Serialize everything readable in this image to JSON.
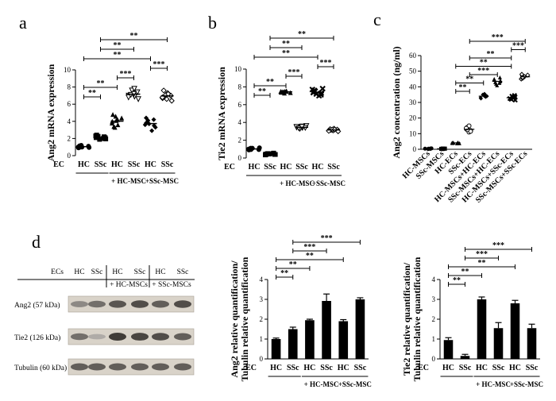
{
  "panels": {
    "a": "a",
    "b": "b",
    "c": "c",
    "d": "d"
  },
  "chart_data": [
    {
      "id": "a",
      "type": "scatter",
      "ylabel": "Ang2 mRNA expression",
      "ylim": [
        0,
        10
      ],
      "yticks": [
        "0",
        "2",
        "4",
        "6",
        "8",
        "10"
      ],
      "row_label": "EC",
      "categories": [
        "HC",
        "SSc",
        "HC",
        "SSc",
        "HC",
        "SSc"
      ],
      "groups": [
        "+ HC-MSC",
        "+SSc-MSC"
      ],
      "markers": [
        "circle",
        "square",
        "triangle-up",
        "triangle-down",
        "diamond",
        "diamond-open"
      ],
      "points": [
        [
          1.0,
          1.1,
          0.9,
          1.2,
          1.0,
          1.05,
          0.95,
          1.15,
          1.0,
          1.1
        ],
        [
          2.1,
          2.0,
          2.3,
          1.9,
          2.2,
          2.4,
          2.0,
          2.1,
          1.95,
          2.25
        ],
        [
          4.0,
          3.6,
          4.6,
          3.3,
          4.2,
          4.8,
          3.8,
          4.4,
          3.4,
          4.1
        ],
        [
          6.9,
          7.3,
          7.6,
          6.6,
          7.0,
          7.4,
          6.8,
          7.8,
          7.1,
          7.2
        ],
        [
          3.7,
          4.1,
          3.3,
          2.9,
          4.4,
          3.9,
          3.5,
          4.2,
          3.6,
          3.8
        ],
        [
          6.6,
          7.0,
          7.3,
          6.4,
          6.9,
          7.6,
          6.7,
          7.1,
          6.8,
          7.2
        ]
      ],
      "comparisons": [
        {
          "from": 0,
          "to": 1,
          "label": "**"
        },
        {
          "from": 0,
          "to": 2,
          "label": "**"
        },
        {
          "from": 2,
          "to": 3,
          "label": "***"
        },
        {
          "from": 4,
          "to": 5,
          "label": "***"
        },
        {
          "from": 0,
          "to": 4,
          "label": "**"
        },
        {
          "from": 1,
          "to": 3,
          "label": "**"
        },
        {
          "from": 1,
          "to": 5,
          "label": "**"
        }
      ]
    },
    {
      "id": "b",
      "type": "scatter",
      "ylabel": "Tie2 mRNA expression",
      "ylim": [
        0,
        10
      ],
      "yticks": [
        "0",
        "2",
        "4",
        "6",
        "8",
        "10"
      ],
      "row_label": "EC",
      "categories": [
        "HC",
        "SSc",
        "HC",
        "SSc",
        "HC",
        "SSc"
      ],
      "groups": [
        "+ HC-MSC",
        "+SSc-MSC"
      ],
      "markers": [
        "circle",
        "square",
        "triangle-up",
        "triangle-down",
        "cross",
        "diamond-open"
      ],
      "points": [
        [
          1.0,
          1.1,
          0.9,
          1.05,
          0.95,
          1.0,
          1.15,
          1.0,
          1.1,
          0.95
        ],
        [
          0.4,
          0.5,
          0.35,
          0.45,
          0.55,
          0.4,
          0.5,
          0.45,
          0.4,
          0.5
        ],
        [
          7.4,
          7.5,
          7.3,
          7.45,
          7.55,
          7.4,
          7.5,
          7.35,
          7.45,
          7.5
        ],
        [
          3.4,
          3.5,
          3.3,
          3.6,
          3.45,
          3.4,
          3.5,
          3.55,
          3.35,
          3.5
        ],
        [
          7.2,
          7.5,
          7.8,
          7.0,
          7.4,
          7.6,
          7.3,
          7.1,
          7.7,
          7.35
        ],
        [
          3.1,
          3.2,
          3.3,
          3.0,
          3.15,
          3.25,
          3.1,
          3.2,
          3.05,
          3.2
        ]
      ],
      "comparisons": [
        {
          "from": 0,
          "to": 1,
          "label": "**"
        },
        {
          "from": 0,
          "to": 2,
          "label": "**"
        },
        {
          "from": 2,
          "to": 3,
          "label": "***"
        },
        {
          "from": 4,
          "to": 5,
          "label": "***"
        },
        {
          "from": 0,
          "to": 4,
          "label": "**"
        },
        {
          "from": 1,
          "to": 3,
          "label": "**"
        },
        {
          "from": 1,
          "to": 5,
          "label": "**"
        }
      ]
    },
    {
      "id": "c",
      "type": "scatter",
      "ylabel": "Ang2 concentration (ng/ml)",
      "ylim": [
        0,
        60
      ],
      "yticks": [
        "0",
        "10",
        "20",
        "30",
        "40",
        "50",
        "60"
      ],
      "categories": [
        "HC-MSCs",
        "SSc-MSCs",
        "HC-ECs",
        "SSc-ECs",
        "HC-MSCs+HC-ECs",
        "SSc-MSCs+HC-ECs",
        "HC-MSCs+SSc-ECs",
        "SSc-MSCs+SSc-ECs"
      ],
      "markers": [
        "circle",
        "square",
        "triangle-up",
        "circle-open",
        "diamond",
        "triangle-up",
        "cross",
        "diamond-open"
      ],
      "points": [
        [
          0.3,
          0.5,
          0.2,
          0.4,
          0.3,
          0.6,
          0.4
        ],
        [
          0.2,
          0.4,
          0.3,
          0.5,
          0.3,
          0.2,
          0.4
        ],
        [
          3.8,
          4.2,
          4.0,
          4.4,
          3.9,
          4.1,
          4.3
        ],
        [
          11,
          12,
          13,
          14,
          15,
          11.5,
          12.5,
          13.5
        ],
        [
          33,
          34,
          35,
          32.5,
          34.5,
          33.5,
          35.5,
          34
        ],
        [
          42,
          43,
          44,
          45,
          41,
          43.5,
          44.5,
          42.5,
          46
        ],
        [
          32,
          33,
          34,
          31.5,
          33.5,
          32.5,
          34.5,
          33
        ],
        [
          45,
          46,
          47,
          48,
          46.5,
          45.5,
          47.5,
          46
        ]
      ],
      "comparisons": [
        {
          "from": 2,
          "to": 3,
          "label": "**"
        },
        {
          "from": 2,
          "to": 4,
          "label": "**"
        },
        {
          "from": 3,
          "to": 5,
          "label": "***"
        },
        {
          "from": 2,
          "to": 6,
          "label": "**"
        },
        {
          "from": 3,
          "to": 6,
          "label": "**"
        },
        {
          "from": 6,
          "to": 7,
          "label": "***"
        },
        {
          "from": 3,
          "to": 7,
          "label": "***"
        }
      ]
    },
    {
      "id": "d2",
      "type": "bar",
      "ylabel": "Ang2 relative quantification/ Tubulin relative quantification",
      "ylim": [
        0,
        4
      ],
      "yticks": [
        "0",
        "1",
        "2",
        "3",
        "4"
      ],
      "row_label": "EC",
      "categories": [
        "HC",
        "SSc",
        "HC",
        "SSc",
        "HC",
        "SSc"
      ],
      "groups": [
        "+ HC-MSC",
        "+SSc-MSC"
      ],
      "values": [
        1.0,
        1.5,
        1.95,
        2.92,
        1.9,
        3.0
      ],
      "errors": [
        0.05,
        0.1,
        0.05,
        0.35,
        0.08,
        0.08
      ],
      "comparisons": [
        {
          "from": 0,
          "to": 1,
          "label": "**"
        },
        {
          "from": 0,
          "to": 2,
          "label": "**"
        },
        {
          "from": 0,
          "to": 4,
          "label": "**"
        },
        {
          "from": 1,
          "to": 3,
          "label": "***"
        },
        {
          "from": 1,
          "to": 5,
          "label": "***"
        }
      ]
    },
    {
      "id": "d3",
      "type": "bar",
      "ylabel": "Tie2 relative quantification/ Tubulin relative quantification",
      "ylim": [
        0,
        4
      ],
      "yticks": [
        "0",
        "1",
        "2",
        "3",
        "4"
      ],
      "row_label": "EC",
      "categories": [
        "HC",
        "SSc",
        "HC",
        "SSc",
        "HC",
        "SSc"
      ],
      "groups": [
        "+ HC-MSC",
        "+SSc-MSC"
      ],
      "values": [
        0.95,
        0.15,
        3.0,
        1.55,
        2.8,
        1.55
      ],
      "errors": [
        0.12,
        0.08,
        0.12,
        0.28,
        0.15,
        0.2
      ],
      "comparisons": [
        {
          "from": 0,
          "to": 1,
          "label": "**"
        },
        {
          "from": 0,
          "to": 2,
          "label": "**"
        },
        {
          "from": 0,
          "to": 4,
          "label": "**"
        },
        {
          "from": 1,
          "to": 3,
          "label": "***"
        },
        {
          "from": 1,
          "to": 5,
          "label": "***"
        }
      ]
    }
  ],
  "western_blot": {
    "header_label": "ECs",
    "lanes": [
      "HC",
      "SSc",
      "HC",
      "SSc",
      "HC",
      "SSc"
    ],
    "groups": [
      "+ HC-MSCs",
      "+ SSc-MSCs"
    ],
    "bands": [
      {
        "label": "Ang2 (57 kDa)",
        "intensity": [
          0.35,
          0.5,
          0.65,
          0.7,
          0.6,
          0.7
        ]
      },
      {
        "label": "Tie2 (126 kDa)",
        "intensity": [
          0.5,
          0.15,
          0.8,
          0.75,
          0.7,
          0.6
        ]
      },
      {
        "label": "Tubulin (60 kDa)",
        "intensity": [
          0.6,
          0.6,
          0.6,
          0.6,
          0.6,
          0.6
        ]
      }
    ]
  }
}
